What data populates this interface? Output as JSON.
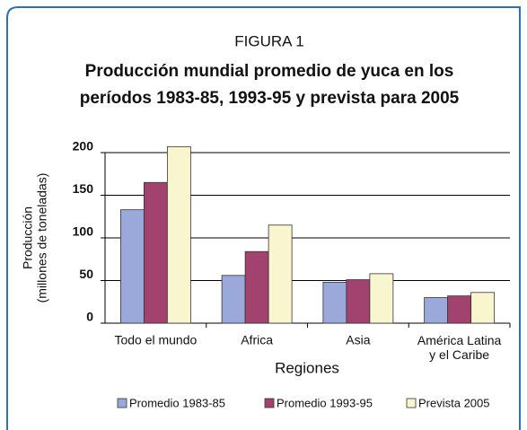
{
  "chart_data": {
    "type": "bar",
    "figure_label": "FIGURA 1",
    "title": [
      "Producción mundial promedio de yuca en los",
      "períodos 1983-85, 1993-95 y prevista para 2005"
    ],
    "ylabel": [
      "Producción",
      "(millones de toneladas)"
    ],
    "xlabel": "Regiones",
    "categories": [
      "Todo el mundo",
      "Africa",
      "Asia",
      "América Latina\ny el Caribe"
    ],
    "series": [
      {
        "name": "Promedio 1983-85",
        "color": "#9ba8da",
        "values": [
          133,
          56,
          48,
          30
        ]
      },
      {
        "name": "Promedio 1993-95",
        "color": "#a2426e",
        "values": [
          165,
          84,
          51,
          32
        ]
      },
      {
        "name": "Prevista 2005",
        "color": "#f8f5cf",
        "values": [
          207,
          115,
          58,
          36
        ]
      }
    ],
    "ylim": [
      0,
      200
    ],
    "yticks": [
      0,
      50,
      100,
      150,
      200
    ],
    "grid": true,
    "legend": "bottom"
  }
}
